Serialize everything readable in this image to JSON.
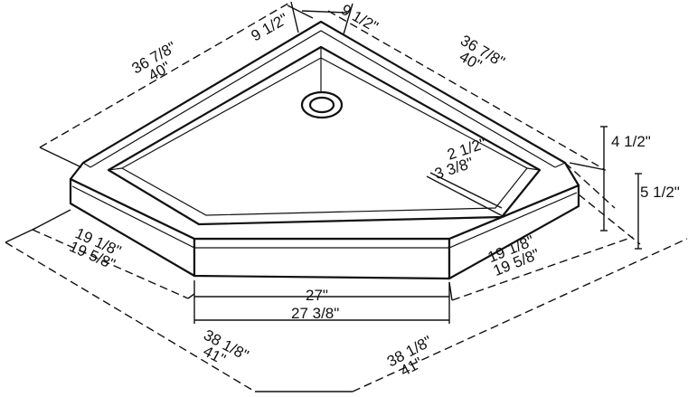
{
  "dimensions": {
    "back_left_inner": "36 7/8\"",
    "back_left_outer": "40\"",
    "back_right_inner": "36 7/8\"",
    "back_right_outer": "40\"",
    "top_inner_left": "9 1/2\"",
    "top_inner_right": "9 1/2\"",
    "curb_width_inner": "2 1/2\"",
    "curb_width_outer": "3 3/8\"",
    "height_inner": "4 1/2\"",
    "height_outer": "5 1/2\"",
    "left_side_inner": "19 1/8\"",
    "left_side_outer": "19 5/8\"",
    "right_side_inner": "19 1/8\"",
    "right_side_outer": "19 5/8\"",
    "front_inner": "27\"",
    "front_outer": "27 3/8\"",
    "front_left_inner": "38 1/8\"",
    "front_left_outer": "41\"",
    "front_right_inner": "38 1/8\"",
    "front_right_outer": "41\""
  }
}
